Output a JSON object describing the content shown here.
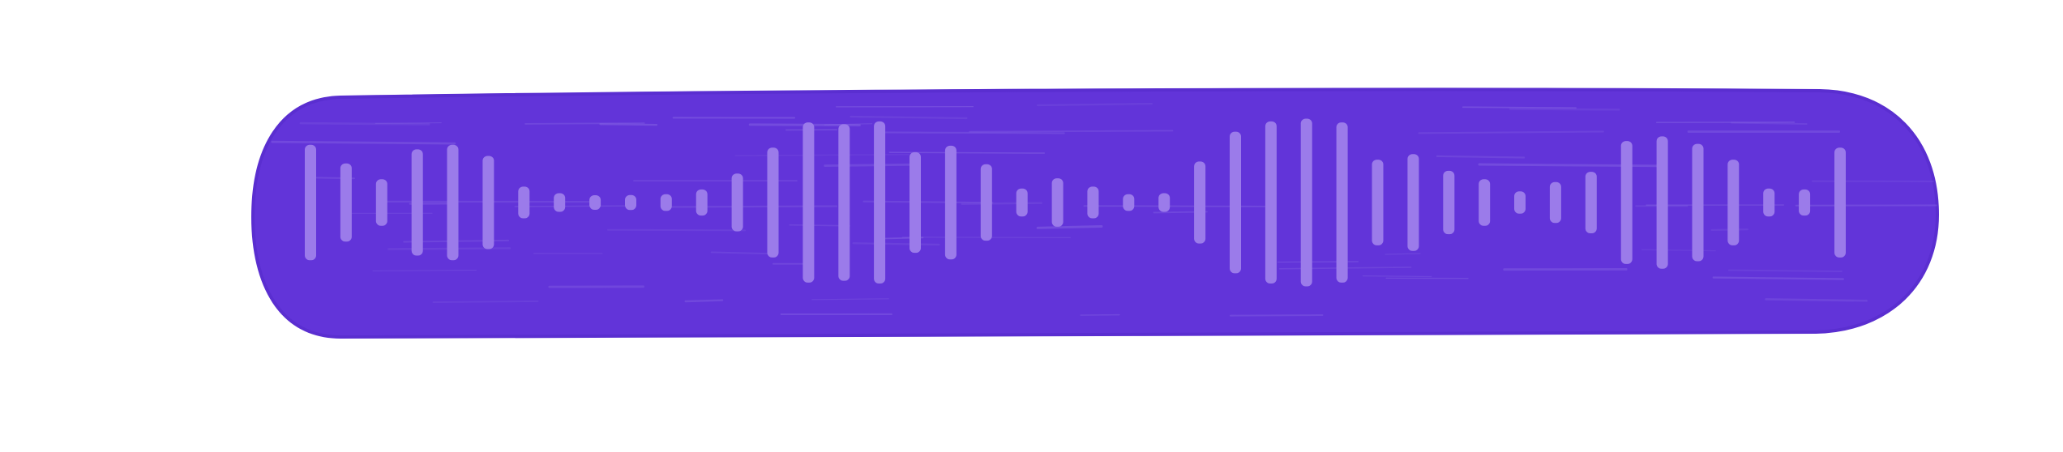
{
  "colors": {
    "background": "#ffffff",
    "pill": "#6234D9",
    "pill_edge": "#5a2ed0",
    "bars": "#9B7BEA",
    "streaks": "#8E6EE6"
  },
  "icon": "audio-waveform-icon",
  "waveform": {
    "levels": [
      0.62,
      0.42,
      0.25,
      0.57,
      0.62,
      0.5,
      0.17,
      0.1,
      0.07,
      0.08,
      0.09,
      0.14,
      0.31,
      0.59,
      0.86,
      0.84,
      0.87,
      0.54,
      0.61,
      0.41,
      0.15,
      0.26,
      0.17,
      0.09,
      0.1,
      0.44,
      0.76,
      0.87,
      0.9,
      0.86,
      0.46,
      0.52,
      0.34,
      0.25,
      0.12,
      0.22,
      0.33,
      0.66,
      0.71,
      0.63,
      0.46,
      0.15,
      0.14,
      0.59
    ]
  }
}
